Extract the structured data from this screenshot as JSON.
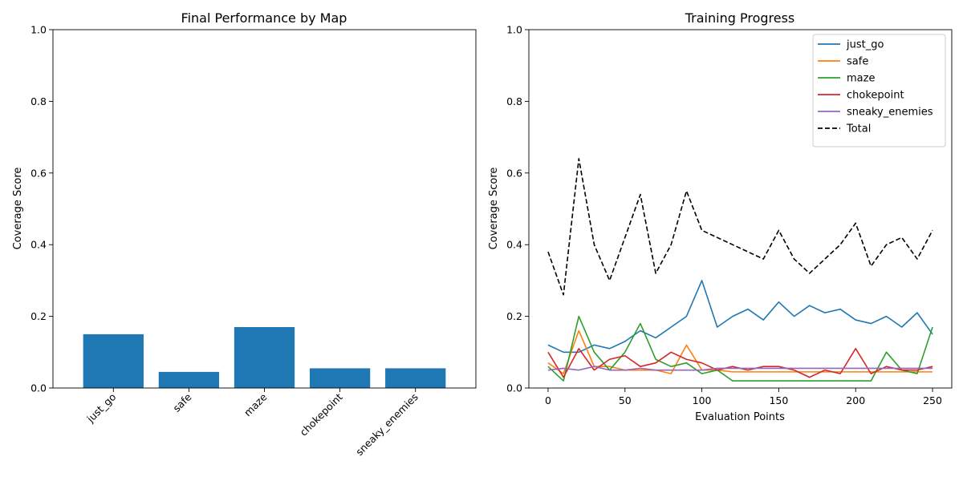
{
  "chart_data": [
    {
      "type": "bar",
      "title": "Final Performance by Map",
      "xlabel": "",
      "ylabel": "Coverage Score",
      "ylim": [
        0,
        1
      ],
      "yticks": [
        "0.0",
        "0.2",
        "0.4",
        "0.6",
        "0.8",
        "1.0"
      ],
      "categories": [
        "just_go",
        "safe",
        "maze",
        "chokepoint",
        "sneaky_enemies"
      ],
      "values": [
        0.15,
        0.045,
        0.17,
        0.055,
        0.055
      ],
      "color": "#1f77b4",
      "grid": false
    },
    {
      "type": "line",
      "title": "Training Progress",
      "xlabel": "Evaluation Points",
      "ylabel": "Coverage Score",
      "xlim": [
        -12.5,
        262.5
      ],
      "ylim": [
        0,
        1
      ],
      "xticks": [
        0,
        50,
        100,
        150,
        200,
        250
      ],
      "yticks": [
        "0.0",
        "0.2",
        "0.4",
        "0.6",
        "0.8",
        "1.0"
      ],
      "legend_position": "top-right",
      "grid": false,
      "x": [
        0,
        10,
        20,
        30,
        40,
        50,
        60,
        70,
        80,
        90,
        100,
        110,
        120,
        130,
        140,
        150,
        160,
        170,
        180,
        190,
        200,
        210,
        220,
        230,
        240,
        250
      ],
      "series": [
        {
          "name": "just_go",
          "color": "#1f77b4",
          "dash": "",
          "values": [
            0.12,
            0.1,
            0.1,
            0.12,
            0.11,
            0.13,
            0.16,
            0.14,
            0.17,
            0.2,
            0.3,
            0.17,
            0.2,
            0.22,
            0.19,
            0.24,
            0.2,
            0.23,
            0.21,
            0.22,
            0.19,
            0.18,
            0.2,
            0.17,
            0.21,
            0.15
          ]
        },
        {
          "name": "safe",
          "color": "#ff7f0e",
          "dash": "",
          "values": [
            0.07,
            0.04,
            0.16,
            0.06,
            0.06,
            0.05,
            0.05,
            0.05,
            0.04,
            0.12,
            0.05,
            0.05,
            0.045,
            0.045,
            0.045,
            0.045,
            0.045,
            0.045,
            0.045,
            0.045,
            0.045,
            0.045,
            0.045,
            0.045,
            0.045,
            0.045
          ]
        },
        {
          "name": "maze",
          "color": "#2ca02c",
          "dash": "",
          "values": [
            0.06,
            0.02,
            0.2,
            0.1,
            0.05,
            0.1,
            0.18,
            0.08,
            0.06,
            0.07,
            0.04,
            0.05,
            0.02,
            0.02,
            0.02,
            0.02,
            0.02,
            0.02,
            0.02,
            0.02,
            0.02,
            0.02,
            0.1,
            0.05,
            0.04,
            0.17
          ]
        },
        {
          "name": "chokepoint",
          "color": "#d62728",
          "dash": "",
          "values": [
            0.1,
            0.03,
            0.11,
            0.05,
            0.08,
            0.09,
            0.06,
            0.07,
            0.1,
            0.08,
            0.07,
            0.05,
            0.06,
            0.05,
            0.06,
            0.06,
            0.05,
            0.03,
            0.05,
            0.04,
            0.11,
            0.04,
            0.06,
            0.05,
            0.05,
            0.06
          ]
        },
        {
          "name": "sneaky_enemies",
          "color": "#9467bd",
          "dash": "",
          "values": [
            0.05,
            0.055,
            0.05,
            0.06,
            0.05,
            0.05,
            0.055,
            0.05,
            0.05,
            0.05,
            0.05,
            0.055,
            0.055,
            0.055,
            0.055,
            0.055,
            0.055,
            0.055,
            0.055,
            0.055,
            0.055,
            0.055,
            0.055,
            0.055,
            0.055,
            0.055
          ]
        },
        {
          "name": "Total",
          "color": "#000000",
          "dash": "6,3",
          "values": [
            0.38,
            0.26,
            0.64,
            0.4,
            0.3,
            0.42,
            0.54,
            0.32,
            0.4,
            0.55,
            0.44,
            0.42,
            0.4,
            0.38,
            0.36,
            0.44,
            0.36,
            0.32,
            0.36,
            0.4,
            0.46,
            0.34,
            0.4,
            0.42,
            0.36,
            0.44
          ]
        }
      ]
    }
  ]
}
